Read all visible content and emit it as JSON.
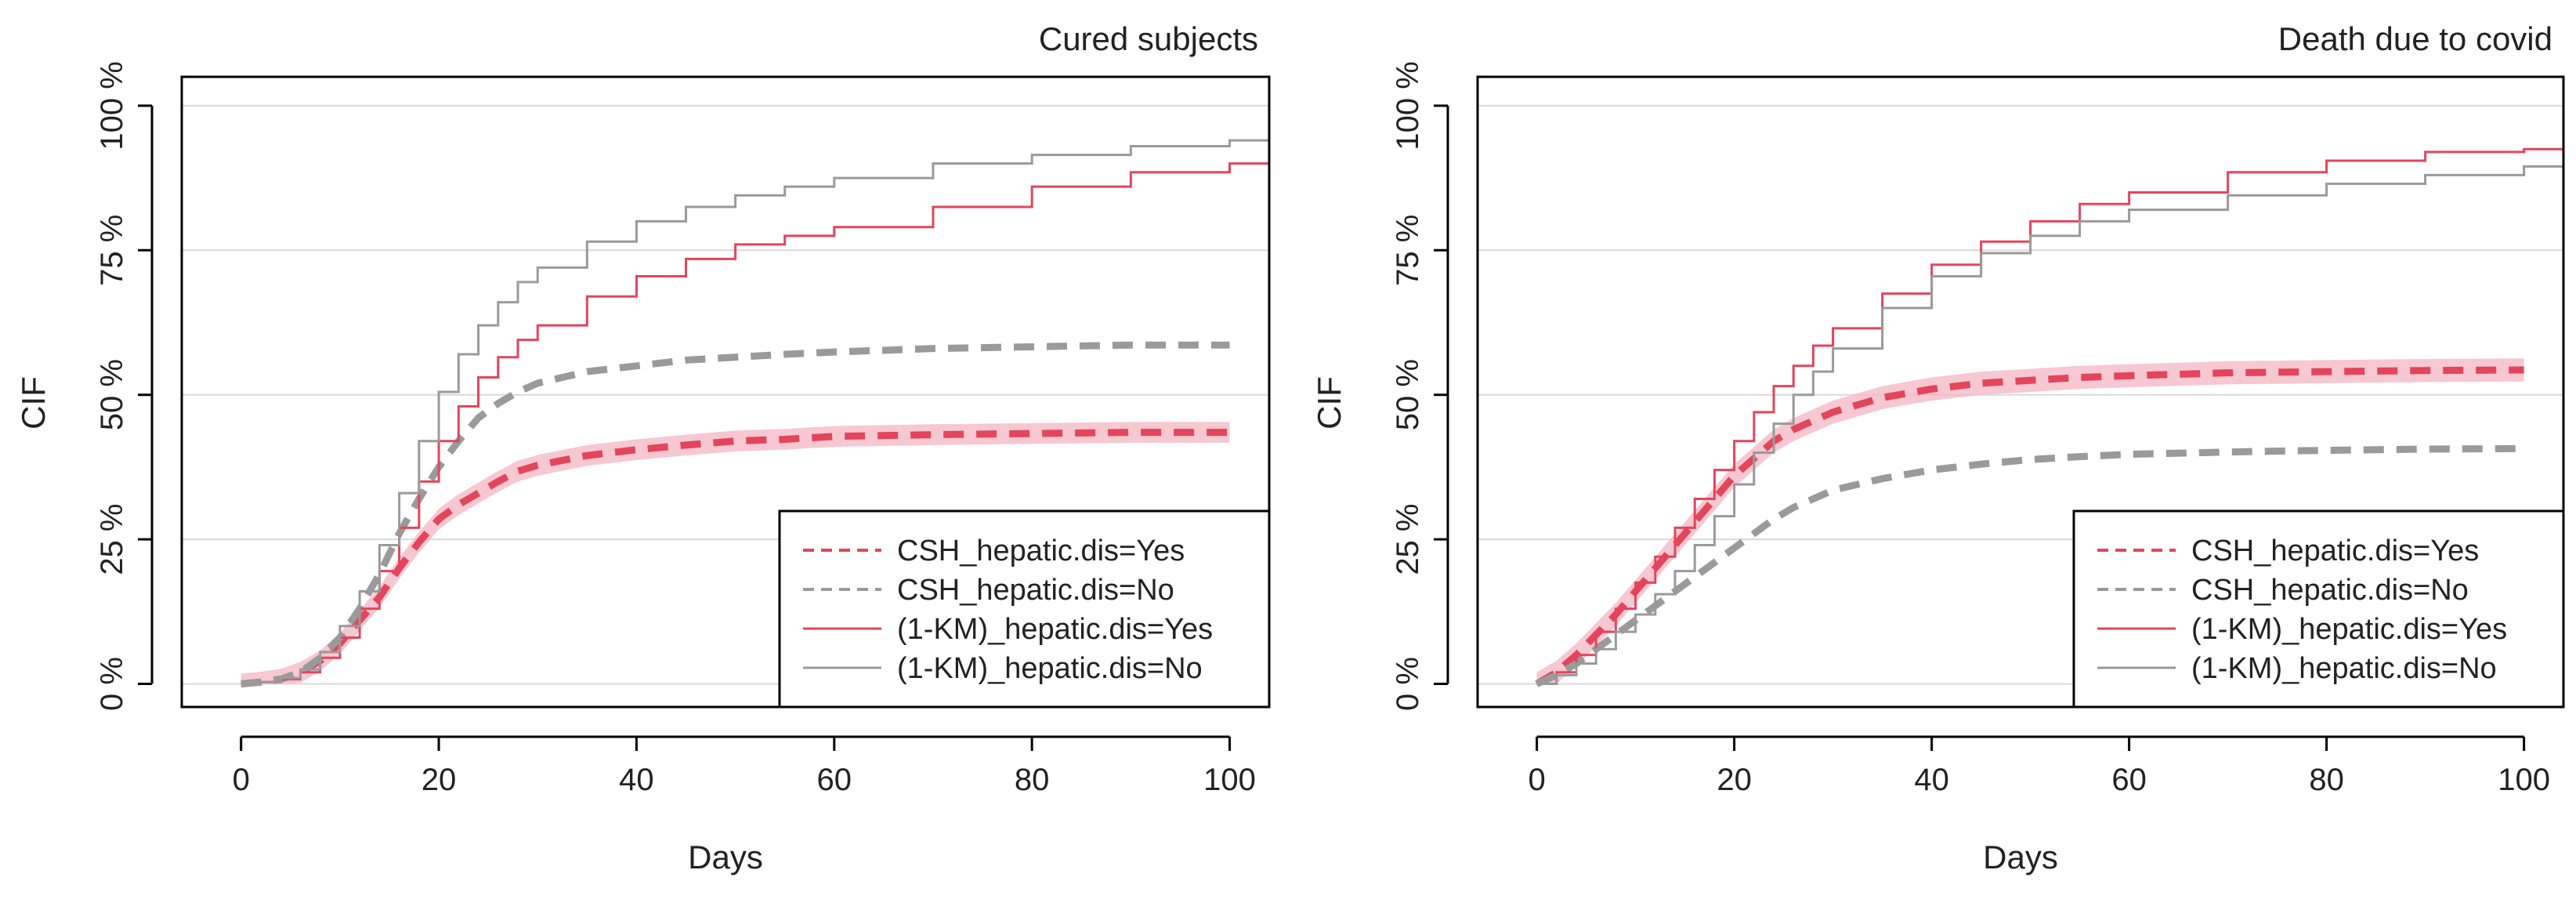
{
  "colors": {
    "yes": "#e3455b",
    "no": "#9a9a9a",
    "band": "#f4b6c1",
    "grid": "#d9d9d9",
    "axis": "#000000"
  },
  "chart_data": [
    {
      "type": "line",
      "title": "Cured subjects",
      "xlabel": "Days",
      "ylabel": "CIF",
      "xlim": [
        -6,
        104
      ],
      "ylim": [
        -4,
        105
      ],
      "xticks": [
        0,
        20,
        40,
        60,
        80,
        100
      ],
      "xtick_labels": [
        "0",
        "20",
        "40",
        "60",
        "80",
        "100"
      ],
      "yticks": [
        0,
        25,
        50,
        75,
        100
      ],
      "ytick_labels": [
        "0 %",
        "25 %",
        "50 %",
        "75 %",
        "100 %"
      ],
      "grid": true,
      "legend_position": "bottom-right",
      "series": [
        {
          "name": "CSH_hepatic.dis=Yes",
          "style": "dashed",
          "color_key": "yes",
          "band": 1.8,
          "x": [
            0,
            2,
            4,
            6,
            8,
            10,
            12,
            14,
            16,
            18,
            20,
            22,
            24,
            26,
            28,
            30,
            35,
            40,
            45,
            50,
            55,
            60,
            70,
            80,
            90,
            100
          ],
          "y": [
            0,
            0.3,
            0.8,
            2,
            4,
            7,
            11,
            15,
            20,
            24.5,
            28.5,
            31,
            33,
            35,
            36.8,
            37.8,
            39.5,
            40.5,
            41.3,
            42,
            42.3,
            42.8,
            43.1,
            43.3,
            43.5,
            43.5
          ]
        },
        {
          "name": "CSH_hepatic.dis=No",
          "style": "dashed",
          "color_key": "no",
          "band": 0,
          "x": [
            0,
            2,
            4,
            6,
            8,
            10,
            12,
            14,
            16,
            18,
            20,
            22,
            24,
            26,
            28,
            30,
            35,
            40,
            45,
            50,
            55,
            60,
            70,
            80,
            90,
            100
          ],
          "y": [
            0,
            0.3,
            0.8,
            2,
            4.5,
            8,
            13,
            19,
            26,
            32,
            37.5,
            42,
            46,
            48.5,
            50.5,
            52,
            54,
            55,
            56,
            56.5,
            57,
            57.4,
            58,
            58.3,
            58.6,
            58.6
          ]
        },
        {
          "name": "(1-KM)_hepatic.dis=Yes",
          "style": "step",
          "color_key": "yes",
          "band": 0,
          "x": [
            0,
            2,
            4,
            6,
            8,
            10,
            12,
            14,
            16,
            18,
            20,
            22,
            24,
            26,
            28,
            30,
            35,
            40,
            45,
            50,
            55,
            60,
            70,
            80,
            90,
            100,
            104
          ],
          "y": [
            0,
            0.3,
            0.8,
            2,
            4.5,
            8,
            13,
            19.5,
            27,
            35,
            42,
            48,
            53,
            56.5,
            59.5,
            62,
            67,
            70.5,
            73.5,
            76,
            77.5,
            79,
            82.5,
            86,
            88.5,
            90,
            90
          ]
        },
        {
          "name": "(1-KM)_hepatic.dis=No",
          "style": "step",
          "color_key": "no",
          "band": 0,
          "x": [
            0,
            2,
            4,
            6,
            8,
            10,
            12,
            14,
            16,
            18,
            20,
            22,
            24,
            26,
            28,
            30,
            35,
            40,
            45,
            50,
            55,
            60,
            70,
            80,
            90,
            100,
            104
          ],
          "y": [
            0,
            0.3,
            1,
            2.5,
            5.5,
            10,
            16,
            24,
            33,
            42,
            50.5,
            57,
            62,
            66,
            69.5,
            72,
            76.5,
            80,
            82.5,
            84.5,
            86,
            87.5,
            90,
            91.5,
            93,
            94,
            94
          ]
        }
      ]
    },
    {
      "type": "line",
      "title": "Death due to covid",
      "xlabel": "Days",
      "ylabel": "CIF",
      "xlim": [
        -6,
        104
      ],
      "ylim": [
        -4,
        105
      ],
      "xticks": [
        0,
        20,
        40,
        60,
        80,
        100
      ],
      "xtick_labels": [
        "0",
        "20",
        "40",
        "60",
        "80",
        "100"
      ],
      "yticks": [
        0,
        25,
        50,
        75,
        100
      ],
      "ytick_labels": [
        "0 %",
        "25 %",
        "50 %",
        "75 %",
        "100 %"
      ],
      "grid": true,
      "legend_position": "bottom-right",
      "series": [
        {
          "name": "CSH_hepatic.dis=Yes",
          "style": "dashed",
          "color_key": "yes",
          "band": 2,
          "x": [
            0,
            2,
            4,
            6,
            8,
            10,
            12,
            14,
            16,
            18,
            20,
            22,
            24,
            26,
            28,
            30,
            35,
            40,
            45,
            50,
            55,
            60,
            70,
            80,
            90,
            100
          ],
          "y": [
            0,
            2,
            5,
            8.5,
            12,
            16,
            20,
            24,
            28,
            32,
            36,
            39,
            42,
            44,
            45.5,
            47,
            49.5,
            51,
            52,
            52.5,
            53,
            53.3,
            53.8,
            54,
            54.2,
            54.3
          ]
        },
        {
          "name": "CSH_hepatic.dis=No",
          "style": "dashed",
          "color_key": "no",
          "band": 0,
          "x": [
            0,
            2,
            4,
            6,
            8,
            10,
            12,
            14,
            16,
            18,
            20,
            22,
            24,
            26,
            28,
            30,
            35,
            40,
            45,
            50,
            55,
            60,
            70,
            80,
            90,
            100
          ],
          "y": [
            0,
            1.5,
            3.5,
            6,
            8.5,
            11,
            13.5,
            16,
            18.5,
            21,
            23.5,
            26,
            28.5,
            30.5,
            32,
            33.5,
            35.5,
            37,
            38,
            38.8,
            39.3,
            39.7,
            40.1,
            40.4,
            40.6,
            40.7
          ]
        },
        {
          "name": "(1-KM)_hepatic.dis=Yes",
          "style": "step",
          "color_key": "yes",
          "band": 0,
          "x": [
            0,
            2,
            4,
            6,
            8,
            10,
            12,
            14,
            16,
            18,
            20,
            22,
            24,
            26,
            28,
            30,
            35,
            40,
            45,
            50,
            55,
            60,
            70,
            80,
            90,
            100,
            104
          ],
          "y": [
            0,
            2,
            5,
            9,
            13,
            17.5,
            22,
            27,
            32,
            37,
            42,
            47,
            51.5,
            55,
            58.5,
            61.5,
            67.5,
            72.5,
            76.5,
            80,
            83,
            85,
            88.5,
            90.5,
            92,
            92.5,
            94
          ]
        },
        {
          "name": "(1-KM)_hepatic.dis=No",
          "style": "step",
          "color_key": "no",
          "band": 0,
          "x": [
            0,
            2,
            4,
            6,
            8,
            10,
            12,
            14,
            16,
            18,
            20,
            22,
            24,
            26,
            28,
            30,
            35,
            40,
            45,
            50,
            55,
            60,
            70,
            80,
            90,
            100,
            104
          ],
          "y": [
            0,
            1.5,
            3.5,
            6,
            9,
            12,
            15.5,
            19.5,
            24,
            29,
            34.5,
            40,
            45,
            50,
            54,
            58,
            65,
            70.5,
            74.5,
            77.5,
            80,
            82,
            84.5,
            86.5,
            88,
            89.5,
            90
          ]
        }
      ]
    }
  ]
}
